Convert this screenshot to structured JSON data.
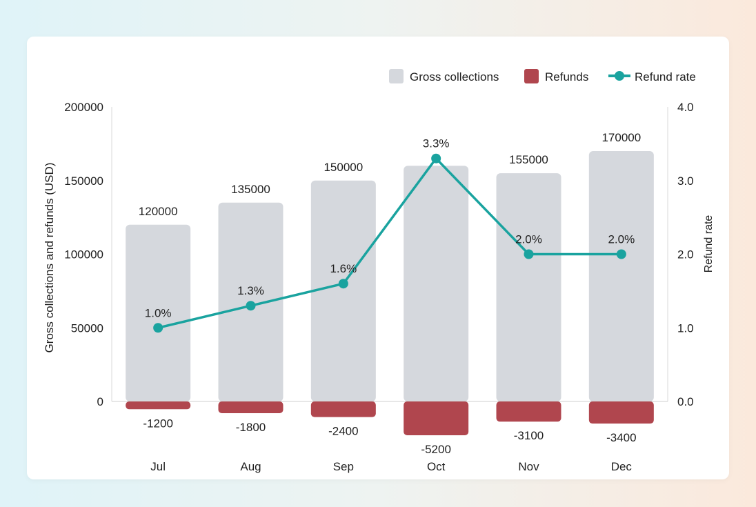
{
  "chart_data": {
    "type": "bar",
    "categories": [
      "Jul",
      "Aug",
      "Sep",
      "Oct",
      "Nov",
      "Dec"
    ],
    "series": [
      {
        "name": "Gross collections",
        "kind": "bar",
        "axis": "left",
        "color": "#d5d8dd",
        "values": [
          120000,
          135000,
          150000,
          160000,
          155000,
          170000
        ],
        "labels": [
          "120000",
          "135000",
          "150000",
          "",
          "155000",
          "170000"
        ]
      },
      {
        "name": "Refunds",
        "kind": "bar",
        "axis": "left",
        "color": "#b0464e",
        "values": [
          -1200,
          -1800,
          -2400,
          -5200,
          -3100,
          -3400
        ],
        "labels": [
          "-1200",
          "-1800",
          "-2400",
          "-5200",
          "-3100",
          "-3400"
        ]
      },
      {
        "name": "Refund rate",
        "kind": "line",
        "axis": "right",
        "color": "#1aa39f",
        "values": [
          1.0,
          1.3,
          1.6,
          3.3,
          2.0,
          2.0
        ],
        "labels": [
          "1.0%",
          "1.3%",
          "1.6%",
          "3.3%",
          "2.0%",
          "2.0%"
        ]
      }
    ],
    "ylabel": "Gross collections and refunds (USD)",
    "ylabel_right": "Refund rate",
    "ylim": [
      0,
      200000
    ],
    "ylim_right": [
      0,
      4.0
    ],
    "yticks": [
      "0",
      "50000",
      "100000",
      "150000",
      "200000"
    ],
    "yticks_right": [
      "0.0",
      "1.0",
      "2.0",
      "3.0",
      "4.0"
    ],
    "grid": false,
    "legend": "top-right"
  }
}
